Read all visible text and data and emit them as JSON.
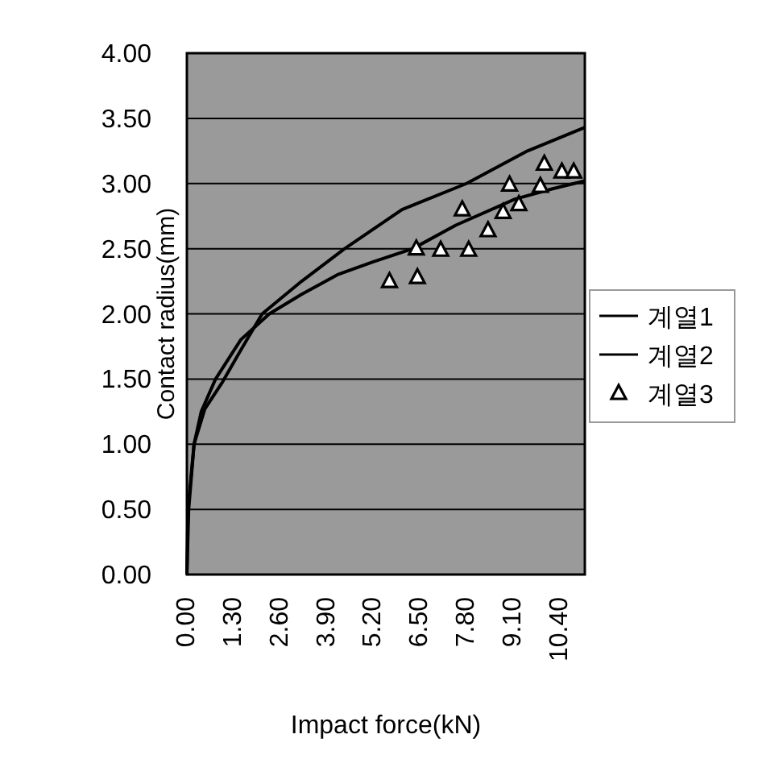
{
  "chart_data": {
    "type": "line",
    "xlabel": "Impact force(kN)",
    "ylabel": "Contact radius(mm)",
    "xlim": [
      0,
      11.1
    ],
    "ylim": [
      0,
      4
    ],
    "xticks": [
      {
        "value": 0,
        "label": "0.00"
      },
      {
        "value": 1.3,
        "label": "1.30"
      },
      {
        "value": 2.6,
        "label": "2.60"
      },
      {
        "value": 3.9,
        "label": "3.90"
      },
      {
        "value": 5.2,
        "label": "5.20"
      },
      {
        "value": 6.5,
        "label": "6.50"
      },
      {
        "value": 7.8,
        "label": "7.80"
      },
      {
        "value": 9.1,
        "label": "9.10"
      },
      {
        "value": 10.4,
        "label": "10.40"
      }
    ],
    "yticks": [
      {
        "value": 0,
        "label": "0.00"
      },
      {
        "value": 0.5,
        "label": "0.50"
      },
      {
        "value": 1,
        "label": "1.00"
      },
      {
        "value": 1.5,
        "label": "1.50"
      },
      {
        "value": 2,
        "label": "2.00"
      },
      {
        "value": 2.5,
        "label": "2.50"
      },
      {
        "value": 3,
        "label": "3.00"
      },
      {
        "value": 3.5,
        "label": "3.50"
      },
      {
        "value": 4,
        "label": "4.00"
      }
    ],
    "grid": "y",
    "legend": "right",
    "series": [
      {
        "name": "계열1",
        "color": "#000000",
        "x": [
          0,
          0.03,
          0.2,
          0.5,
          1.0,
          1.5,
          2.1,
          3.2,
          4.4,
          6.0,
          7.8,
          9.5,
          11.1
        ],
        "values": [
          0,
          0.5,
          1.0,
          1.27,
          1.48,
          1.72,
          2.0,
          2.25,
          2.5,
          2.8,
          3.0,
          3.25,
          3.43
        ]
      },
      {
        "name": "계열2",
        "color": "#000000",
        "x": [
          0,
          0.05,
          0.2,
          0.4,
          0.8,
          1.5,
          2.3,
          3.2,
          4.2,
          5.2,
          6.3,
          7.5,
          9.15,
          10.2,
          11.1
        ],
        "values": [
          0,
          0.5,
          1.0,
          1.25,
          1.5,
          1.8,
          2.0,
          2.15,
          2.3,
          2.4,
          2.5,
          2.68,
          2.88,
          2.96,
          3.02
        ]
      },
      {
        "name": "계열3",
        "type": "scatter",
        "marker": "triangle",
        "color": "#000000",
        "x": [
          5.65,
          6.43,
          6.4,
          7.08,
          7.86,
          7.68,
          8.4,
          8.82,
          9.26,
          9.0,
          9.86,
          9.97,
          10.46,
          10.79
        ],
        "values": [
          2.25,
          2.28,
          2.5,
          2.49,
          2.49,
          2.8,
          2.64,
          2.78,
          2.84,
          2.99,
          2.98,
          3.15,
          3.09,
          3.09
        ]
      }
    ]
  }
}
